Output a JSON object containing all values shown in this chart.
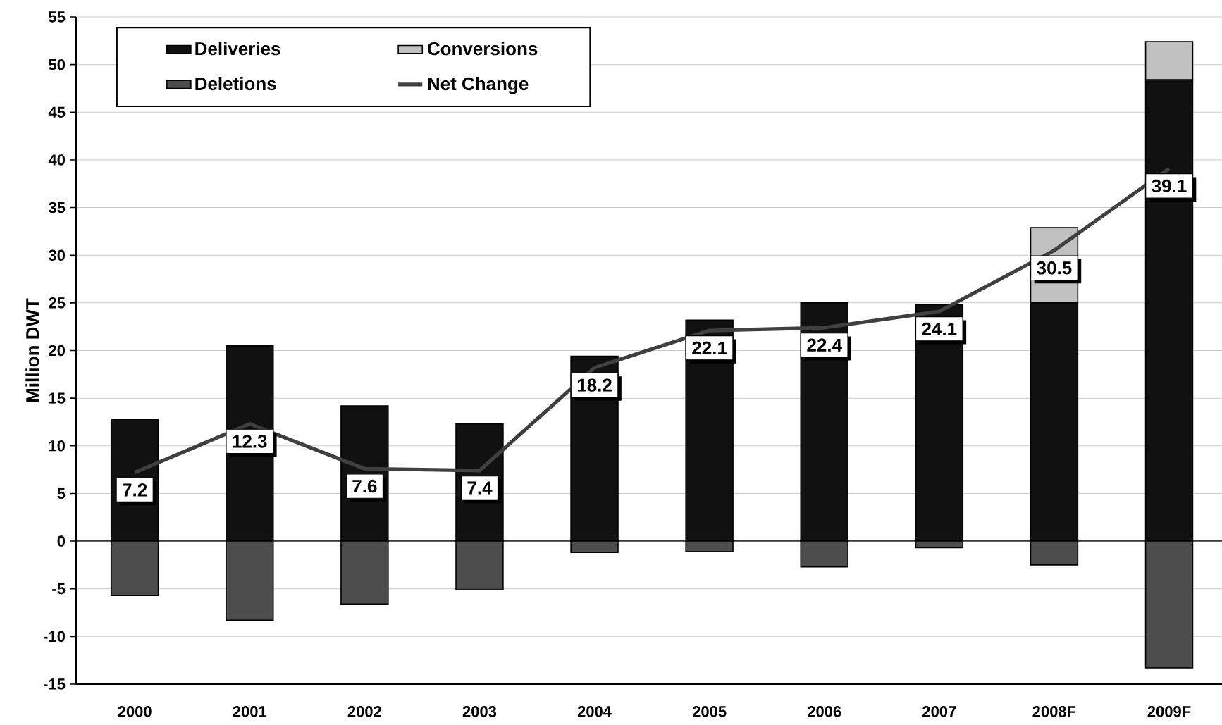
{
  "chart_data": {
    "type": "bar",
    "ylabel": "Million DWT",
    "categories": [
      "2000",
      "2001",
      "2002",
      "2003",
      "2004",
      "2005",
      "2006",
      "2007",
      "2008F",
      "2009F"
    ],
    "series": [
      {
        "name": "Deliveries",
        "color": "#111111",
        "values": [
          12.8,
          20.5,
          14.2,
          12.3,
          19.4,
          23.2,
          25.0,
          24.8,
          25.0,
          48.4
        ]
      },
      {
        "name": "Conversions",
        "color": "#c0c0c0",
        "values": [
          0,
          0,
          0,
          0,
          0,
          0,
          0,
          0,
          7.9,
          4.0
        ]
      },
      {
        "name": "Deletions",
        "color": "#4d4d4d",
        "values": [
          -5.7,
          -8.3,
          -6.6,
          -5.1,
          -1.2,
          -1.1,
          -2.7,
          -0.7,
          -2.5,
          -13.3
        ]
      },
      {
        "name": "Net Change",
        "type": "line",
        "color": "#404040",
        "values": [
          7.2,
          12.3,
          7.6,
          7.4,
          18.2,
          22.1,
          22.4,
          24.1,
          30.5,
          39.1
        ],
        "value_labels": [
          "7.2",
          "12.3",
          "7.6",
          "7.4",
          "18.2",
          "22.1",
          "22.4",
          "24.1",
          "30.5",
          "39.1"
        ]
      }
    ],
    "stacked": true,
    "ylim": [
      -15,
      55
    ],
    "yticks": [
      -15,
      -10,
      -5,
      0,
      5,
      10,
      15,
      20,
      25,
      30,
      35,
      40,
      45,
      50,
      55
    ],
    "grid": "y",
    "legend": "top left",
    "ref_lines": [
      {
        "axis": "y",
        "value": 0,
        "color": "#000000"
      }
    ]
  }
}
